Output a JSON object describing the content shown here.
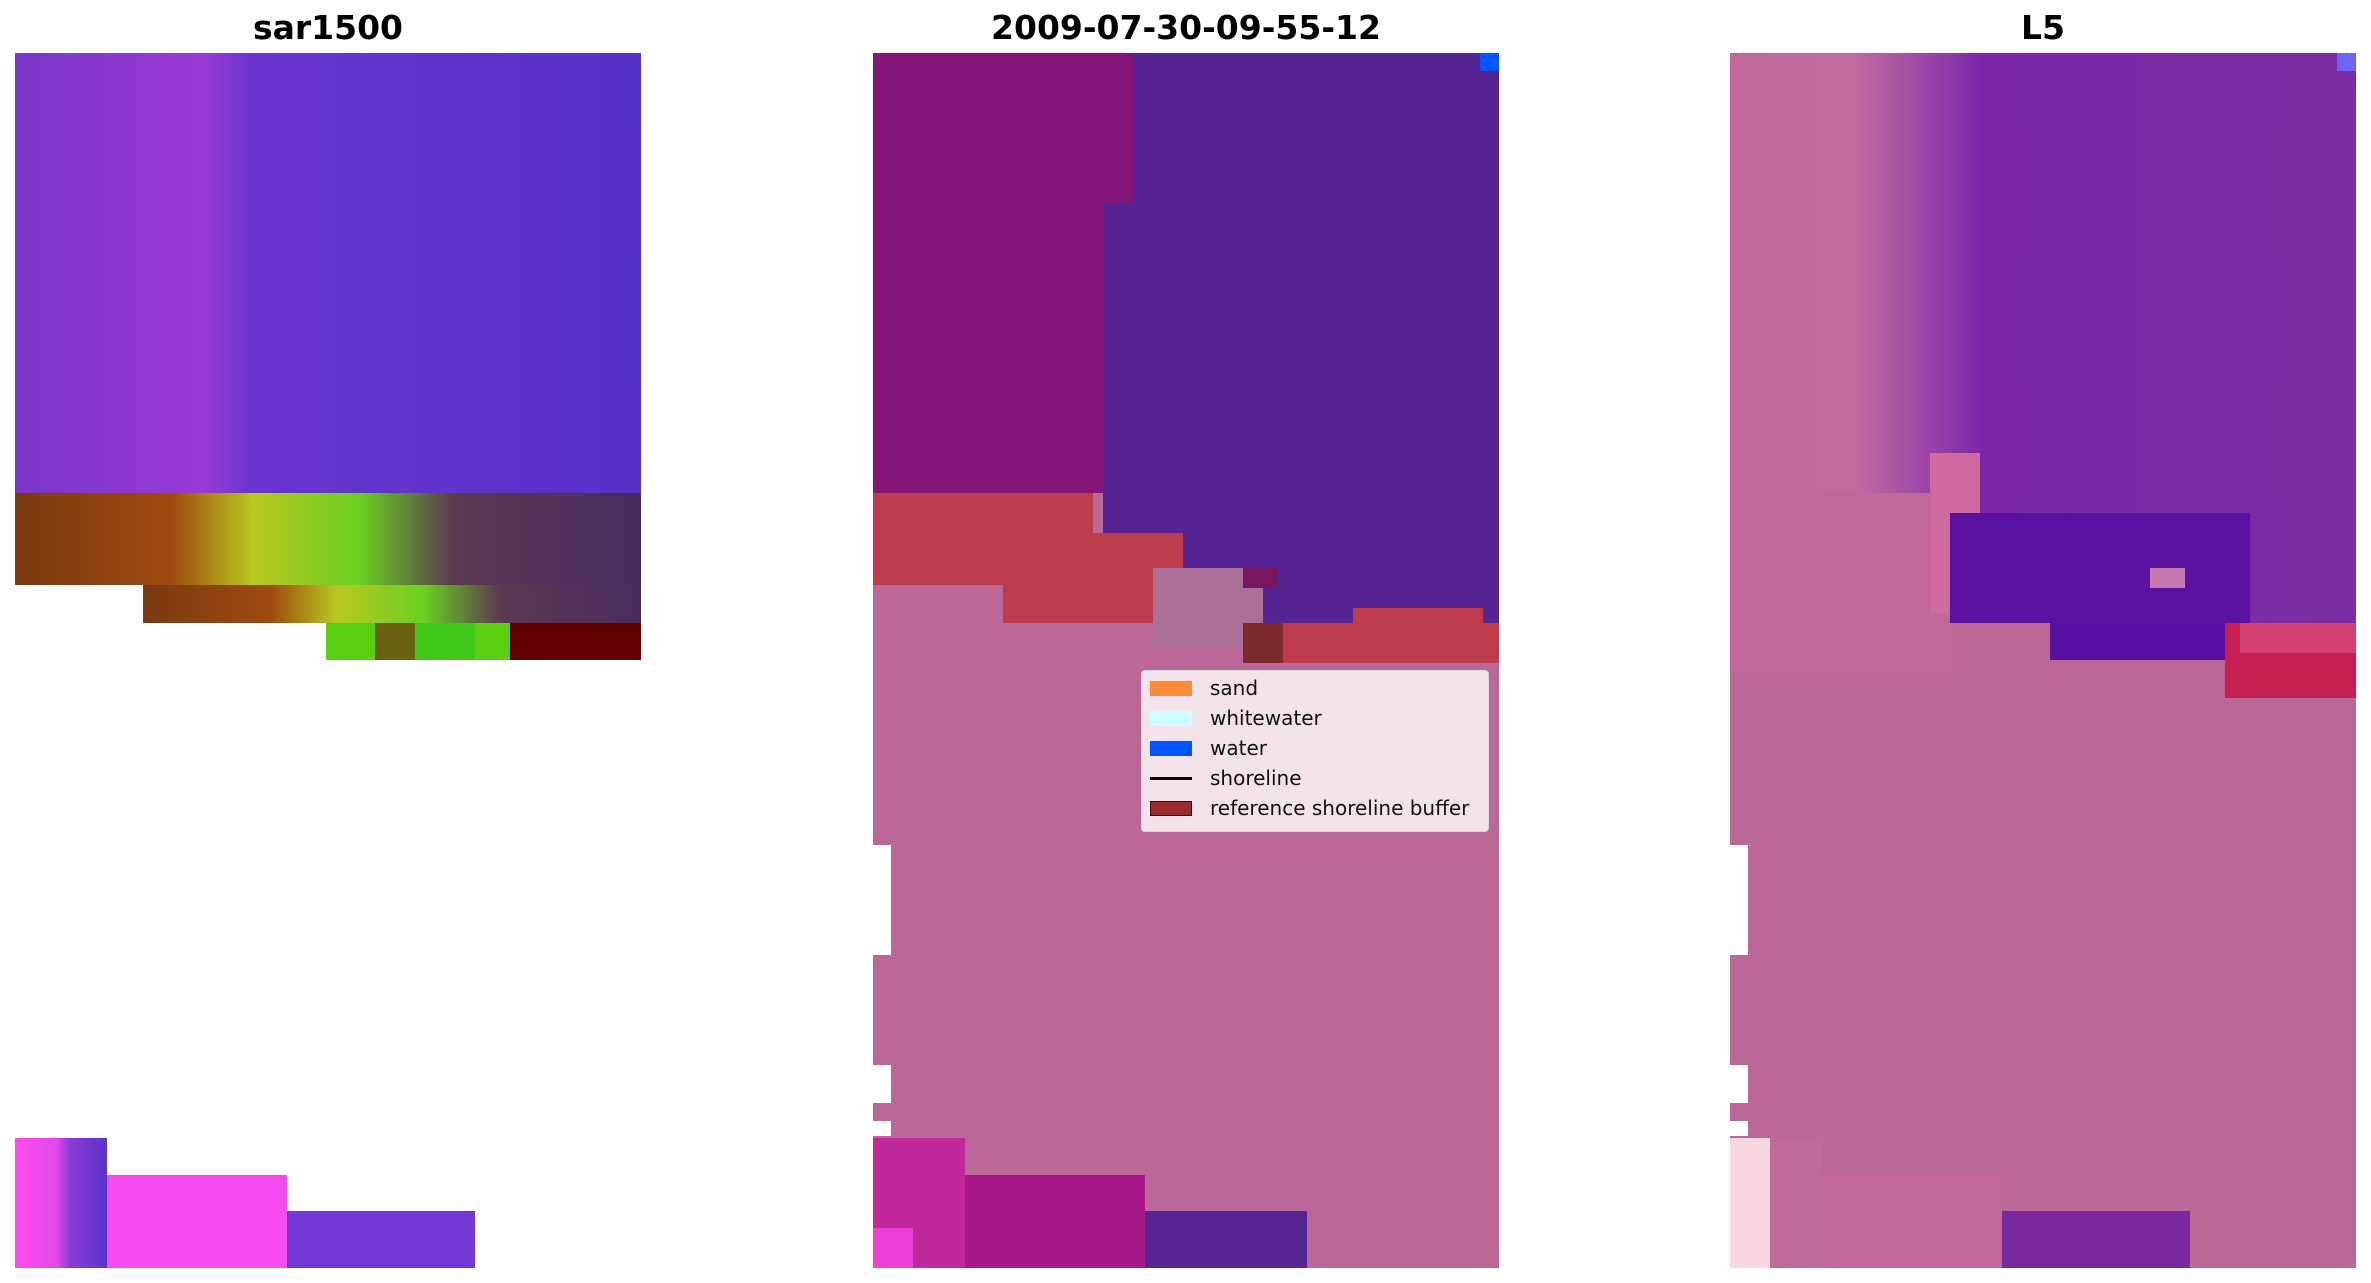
{
  "panels": [
    {
      "title": "sar1500",
      "image": "satellite RGB composite"
    },
    {
      "title": "2009-07-30-09-55-12",
      "image": "classified image overlay"
    },
    {
      "title": "L5",
      "image": "satellite image with shoreline buffer"
    }
  ],
  "legend": {
    "items": [
      {
        "label": "sand",
        "color": "#ff8c3a"
      },
      {
        "label": "whitewater",
        "color": "#ccffff"
      },
      {
        "label": "water",
        "color": "#0055ff"
      },
      {
        "label": "shoreline",
        "color": "#000000"
      },
      {
        "label": "reference shoreline buffer",
        "color": "#9b2c2c"
      }
    ]
  }
}
